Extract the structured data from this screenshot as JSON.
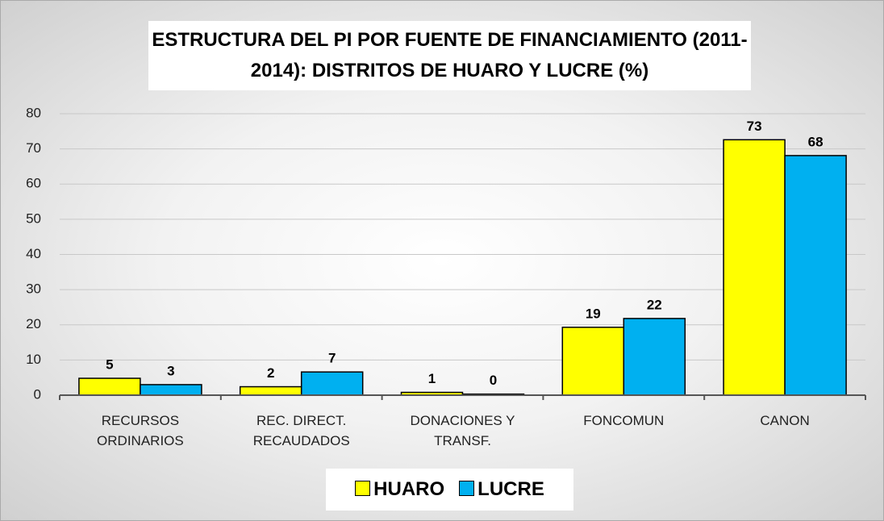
{
  "chart_data": {
    "type": "bar",
    "title": "ESTRUCTURA DEL PI POR FUENTE DE FINANCIAMIENTO (2011-2014): DISTRITOS DE HUARO Y LUCRE (%)",
    "categories": [
      "RECURSOS ORDINARIOS",
      "REC. DIRECT. RECAUDADOS",
      "DONACIONES Y TRANSF.",
      "FONCOMUN",
      "CANON"
    ],
    "series": [
      {
        "name": "HUARO",
        "color": "#ffff00",
        "values": [
          4.8,
          2.4,
          0.8,
          19.3,
          72.6
        ],
        "value_labels": [
          "5",
          "2",
          "1",
          "19",
          "73"
        ]
      },
      {
        "name": "LUCRE",
        "color": "#00b0f0",
        "values": [
          3.0,
          6.6,
          0.3,
          21.8,
          68.1
        ],
        "value_labels": [
          "3",
          "7",
          "0",
          "22",
          "68"
        ]
      }
    ],
    "ylim": [
      0,
      80
    ],
    "yticks": [
      0,
      10,
      20,
      30,
      40,
      50,
      60,
      70,
      80
    ],
    "grid": true,
    "legend": "bottom"
  }
}
